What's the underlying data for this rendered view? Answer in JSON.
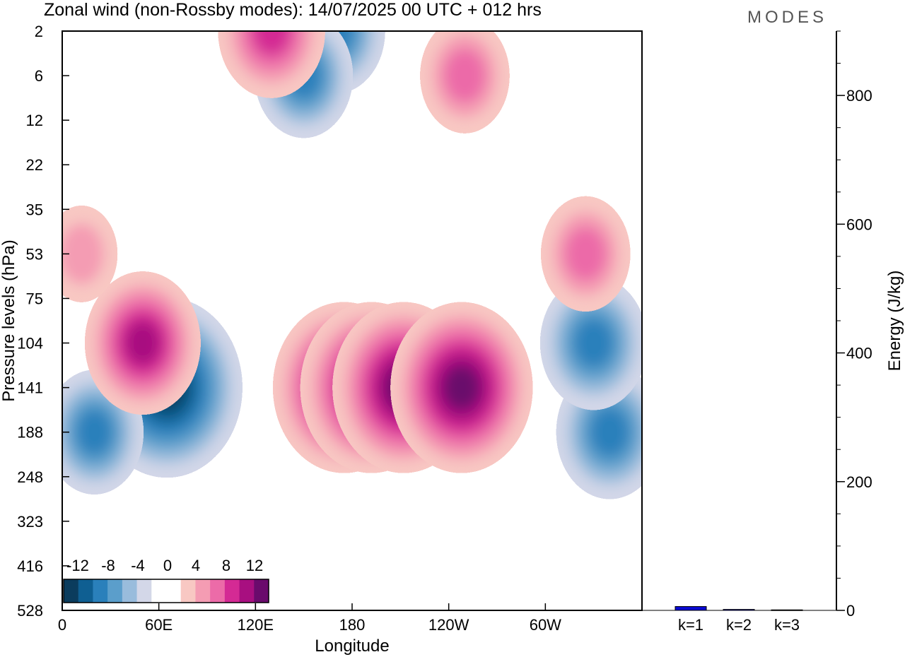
{
  "header": {
    "title": "Zonal wind (non-Rossby modes):  14/07/2025  00 UTC  + 012 hrs",
    "brand": "MODES"
  },
  "chart_data": [
    {
      "type": "heatmap",
      "title": "Zonal wind (non-Rossby modes):  14/07/2025  00 UTC  + 012 hrs",
      "xlabel": "Longitude",
      "ylabel": "Pressure levels (hPa)",
      "x_ticks": [
        "0",
        "60E",
        "120E",
        "180",
        "120W",
        "60W"
      ],
      "x_tick_values": [
        0,
        60,
        120,
        180,
        240,
        300
      ],
      "xlim": [
        0,
        360
      ],
      "y_ticks": [
        "2",
        "6",
        "12",
        "22",
        "35",
        "53",
        "75",
        "104",
        "141",
        "188",
        "248",
        "323",
        "416",
        "528"
      ],
      "colorbar": {
        "labels": [
          "-12",
          "-8",
          "-4",
          "0",
          "4",
          "8",
          "12"
        ],
        "levels": [
          -14,
          -12,
          -10,
          -8,
          -6,
          -4,
          -2,
          2,
          4,
          6,
          8,
          10,
          12,
          14
        ],
        "colors": [
          "#0b3c5d",
          "#0f5f92",
          "#2a80bb",
          "#5b9ecb",
          "#99bcdc",
          "#d3d7e8",
          "#ffffff",
          "#ffffff",
          "#f8c8c3",
          "#f49cb3",
          "#ec6ba8",
          "#d42a94",
          "#a80f80",
          "#6a0b6c"
        ],
        "location": "lower-left"
      },
      "features": [
        {
          "kind": "min",
          "lon": 65,
          "level": "141",
          "value": -14
        },
        {
          "kind": "min",
          "lon": 20,
          "level": "188",
          "value": -8
        },
        {
          "kind": "min",
          "lon": 340,
          "level": "188",
          "value": -9
        },
        {
          "kind": "min",
          "lon": 330,
          "level": "104",
          "value": -9
        },
        {
          "kind": "min",
          "lon": 170,
          "level": "2",
          "value": -8
        },
        {
          "kind": "min",
          "lon": 150,
          "level": "6",
          "value": -8
        },
        {
          "kind": "max",
          "lon": 175,
          "level": "141",
          "value": 13
        },
        {
          "kind": "max",
          "lon": 192,
          "level": "141",
          "value": 13
        },
        {
          "kind": "max",
          "lon": 212,
          "level": "141",
          "value": 13
        },
        {
          "kind": "max",
          "lon": 248,
          "level": "141",
          "value": 13
        },
        {
          "kind": "max",
          "lon": 50,
          "level": "104",
          "value": 10
        },
        {
          "kind": "max",
          "lon": 325,
          "level": "53",
          "value": 7
        },
        {
          "kind": "max",
          "lon": 12,
          "level": "53",
          "value": 5
        },
        {
          "kind": "max",
          "lon": 130,
          "level": "2",
          "value": 9
        },
        {
          "kind": "max",
          "lon": 250,
          "level": "6",
          "value": 7
        }
      ],
      "grid": false
    },
    {
      "type": "bar",
      "ylabel": "Energy (J/kg)",
      "categories": [
        "k=1",
        "k=2",
        "k=3"
      ],
      "values": [
        6,
        1.5,
        0.8
      ],
      "ylim": [
        0,
        900
      ],
      "y_ticks": [
        0,
        200,
        400,
        600,
        800
      ],
      "bar_color": "#0a0ad2",
      "grid": false
    }
  ]
}
